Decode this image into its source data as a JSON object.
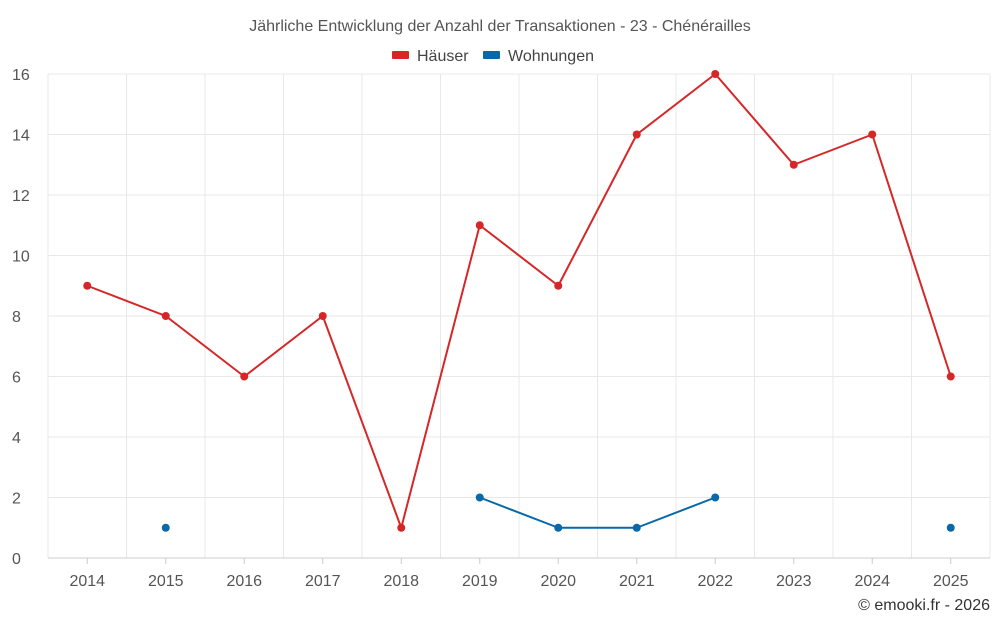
{
  "chart_data": {
    "type": "line",
    "title": "Jährliche Entwicklung der Anzahl der Transaktionen - 23 - Chénérailles",
    "categories": [
      "2014",
      "2015",
      "2016",
      "2017",
      "2018",
      "2019",
      "2020",
      "2021",
      "2022",
      "2023",
      "2024",
      "2025"
    ],
    "y_ticks": [
      "0",
      "2",
      "4",
      "6",
      "8",
      "10",
      "12",
      "14",
      "16"
    ],
    "ylim": [
      0,
      16
    ],
    "grid": true,
    "legend_position": "top-center",
    "series": [
      {
        "name": "Häuser",
        "color": "#d62728",
        "values": [
          9,
          8,
          6,
          8,
          1,
          11,
          9,
          14,
          16,
          13,
          14,
          6
        ]
      },
      {
        "name": "Wohnungen",
        "color": "#0868a8",
        "values": [
          null,
          1,
          null,
          null,
          null,
          2,
          1,
          1,
          2,
          null,
          null,
          1
        ]
      }
    ]
  },
  "credit": "© emooki.fr - 2026"
}
